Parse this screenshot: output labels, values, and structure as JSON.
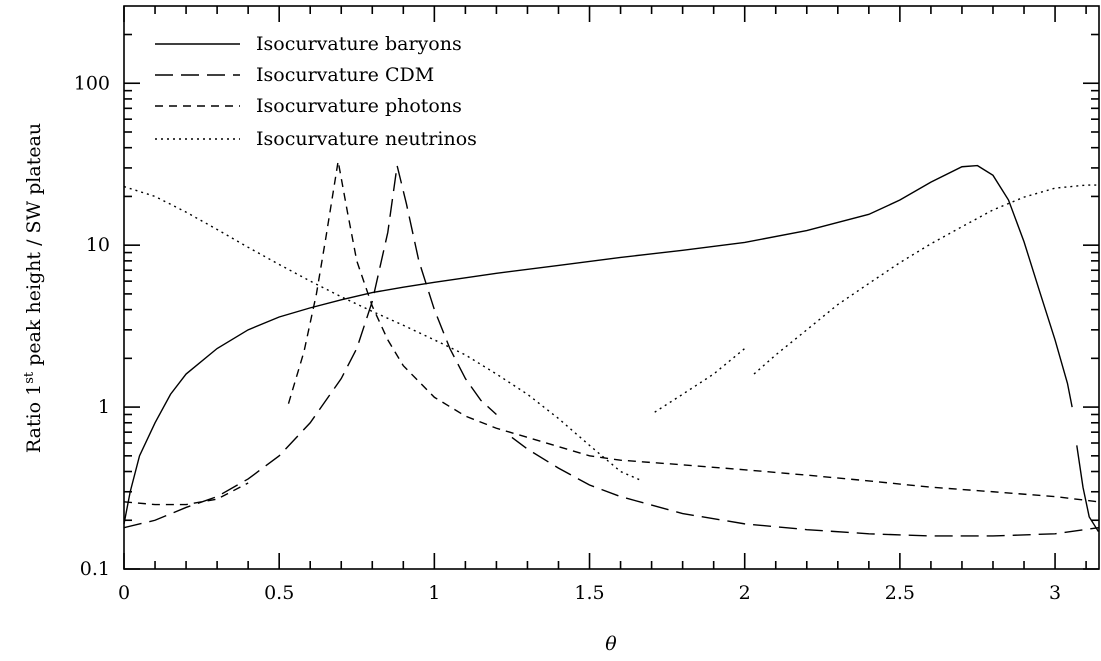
{
  "chart_data": {
    "type": "line",
    "title": "",
    "xlabel": "θ",
    "ylabel": "Ratio 1st peak height / SW plateau",
    "ylabel_main": "Ratio 1",
    "ylabel_sup": "st",
    "ylabel_rest": " peak height / SW plateau",
    "xlim": [
      0,
      3.14159
    ],
    "ylim": [
      0.1,
      300
    ],
    "yscale": "log",
    "grid": false,
    "legend_position": "top-left",
    "x_ticks": [
      0,
      0.5,
      1,
      1.5,
      2,
      2.5,
      3
    ],
    "x_tick_labels": [
      "0",
      "0.5",
      "1",
      "1.5",
      "2",
      "2.5",
      "3"
    ],
    "y_ticks": [
      0.1,
      1,
      10,
      100
    ],
    "y_tick_labels": [
      "0.1",
      "1",
      "10",
      "100"
    ],
    "series": [
      {
        "name": "Isocurvature baryons",
        "dash": "solid",
        "segments": [
          [
            [
              0.0,
              0.19
            ],
            [
              0.02,
              0.3
            ],
            [
              0.05,
              0.5
            ],
            [
              0.1,
              0.8
            ],
            [
              0.15,
              1.2
            ],
            [
              0.2,
              1.6
            ],
            [
              0.3,
              2.3
            ],
            [
              0.4,
              3.0
            ],
            [
              0.5,
              3.6
            ],
            [
              0.6,
              4.1
            ],
            [
              0.7,
              4.6
            ],
            [
              0.8,
              5.1
            ],
            [
              0.9,
              5.5
            ],
            [
              1.0,
              5.9
            ],
            [
              1.2,
              6.7
            ],
            [
              1.4,
              7.5
            ],
            [
              1.6,
              8.4
            ],
            [
              1.8,
              9.3
            ],
            [
              2.0,
              10.4
            ],
            [
              2.2,
              12.3
            ],
            [
              2.4,
              15.5
            ],
            [
              2.5,
              19.0
            ],
            [
              2.6,
              24.5
            ],
            [
              2.7,
              30.5
            ],
            [
              2.75,
              31.0
            ],
            [
              2.8,
              27.0
            ],
            [
              2.85,
              19.0
            ],
            [
              2.9,
              10.5
            ],
            [
              2.95,
              5.2
            ],
            [
              3.0,
              2.6
            ],
            [
              3.04,
              1.4
            ],
            [
              3.055,
              1.0
            ]
          ],
          [
            [
              3.07,
              0.58
            ],
            [
              3.09,
              0.32
            ],
            [
              3.11,
              0.21
            ],
            [
              3.14,
              0.17
            ]
          ]
        ]
      },
      {
        "name": "Isocurvature CDM",
        "dash": "long-dash",
        "segments": [
          [
            [
              0.0,
              0.18
            ],
            [
              0.1,
              0.2
            ],
            [
              0.2,
              0.24
            ],
            [
              0.3,
              0.28
            ],
            [
              0.4,
              0.36
            ],
            [
              0.5,
              0.5
            ],
            [
              0.6,
              0.8
            ],
            [
              0.7,
              1.5
            ],
            [
              0.75,
              2.3
            ],
            [
              0.8,
              4.5
            ],
            [
              0.85,
              12.0
            ],
            [
              0.88,
              31.0
            ],
            [
              0.91,
              18.0
            ],
            [
              0.95,
              8.0
            ],
            [
              1.0,
              4.0
            ],
            [
              1.05,
              2.3
            ],
            [
              1.1,
              1.5
            ],
            [
              1.15,
              1.1
            ],
            [
              1.2,
              0.9
            ]
          ],
          [
            [
              1.25,
              0.65
            ],
            [
              1.3,
              0.55
            ],
            [
              1.4,
              0.42
            ],
            [
              1.5,
              0.33
            ],
            [
              1.6,
              0.28
            ],
            [
              1.8,
              0.22
            ],
            [
              2.0,
              0.19
            ],
            [
              2.2,
              0.175
            ],
            [
              2.4,
              0.165
            ],
            [
              2.6,
              0.16
            ],
            [
              2.8,
              0.16
            ],
            [
              3.0,
              0.165
            ],
            [
              3.14,
              0.18
            ]
          ]
        ]
      },
      {
        "name": "Isocurvature photons",
        "dash": "short-dash",
        "segments": [
          [
            [
              0.0,
              0.26
            ],
            [
              0.1,
              0.25
            ],
            [
              0.2,
              0.25
            ],
            [
              0.3,
              0.27
            ],
            [
              0.4,
              0.34
            ]
          ],
          [
            [
              0.53,
              1.05
            ],
            [
              0.58,
              2.2
            ],
            [
              0.62,
              5.0
            ],
            [
              0.65,
              11.0
            ],
            [
              0.69,
              33.0
            ],
            [
              0.72,
              16.0
            ],
            [
              0.75,
              8.0
            ],
            [
              0.8,
              4.2
            ],
            [
              0.85,
              2.6
            ],
            [
              0.9,
              1.8
            ],
            [
              1.0,
              1.15
            ],
            [
              1.1,
              0.88
            ],
            [
              1.2,
              0.74
            ],
            [
              1.3,
              0.65
            ],
            [
              1.4,
              0.57
            ],
            [
              1.5,
              0.5
            ],
            [
              1.6,
              0.47
            ],
            [
              1.8,
              0.44
            ],
            [
              2.0,
              0.41
            ],
            [
              2.2,
              0.38
            ],
            [
              2.4,
              0.35
            ],
            [
              2.6,
              0.32
            ],
            [
              2.8,
              0.3
            ],
            [
              3.0,
              0.28
            ],
            [
              3.14,
              0.26
            ]
          ]
        ]
      },
      {
        "name": "Isocurvature neutrinos",
        "dash": "dotted",
        "segments": [
          [
            [
              0.0,
              23.0
            ],
            [
              0.1,
              20.0
            ],
            [
              0.2,
              16.0
            ],
            [
              0.3,
              12.5
            ],
            [
              0.4,
              9.7
            ],
            [
              0.5,
              7.6
            ],
            [
              0.6,
              6.0
            ],
            [
              0.7,
              4.8
            ],
            [
              0.8,
              3.9
            ],
            [
              0.9,
              3.2
            ],
            [
              1.0,
              2.6
            ],
            [
              1.1,
              2.1
            ],
            [
              1.2,
              1.6
            ],
            [
              1.3,
              1.2
            ],
            [
              1.4,
              0.85
            ],
            [
              1.5,
              0.58
            ],
            [
              1.6,
              0.4
            ],
            [
              1.67,
              0.35
            ]
          ],
          [
            [
              1.71,
              0.93
            ],
            [
              1.8,
              1.2
            ],
            [
              1.9,
              1.6
            ],
            [
              2.0,
              2.3
            ]
          ],
          [
            [
              2.03,
              1.6
            ],
            [
              2.1,
              2.1
            ],
            [
              2.2,
              3.0
            ],
            [
              2.3,
              4.3
            ],
            [
              2.4,
              5.8
            ],
            [
              2.5,
              7.8
            ],
            [
              2.6,
              10.2
            ],
            [
              2.7,
              13.0
            ],
            [
              2.8,
              16.5
            ],
            [
              2.9,
              19.8
            ],
            [
              3.0,
              22.5
            ],
            [
              3.1,
              23.5
            ],
            [
              3.14,
              23.5
            ]
          ]
        ]
      }
    ]
  }
}
